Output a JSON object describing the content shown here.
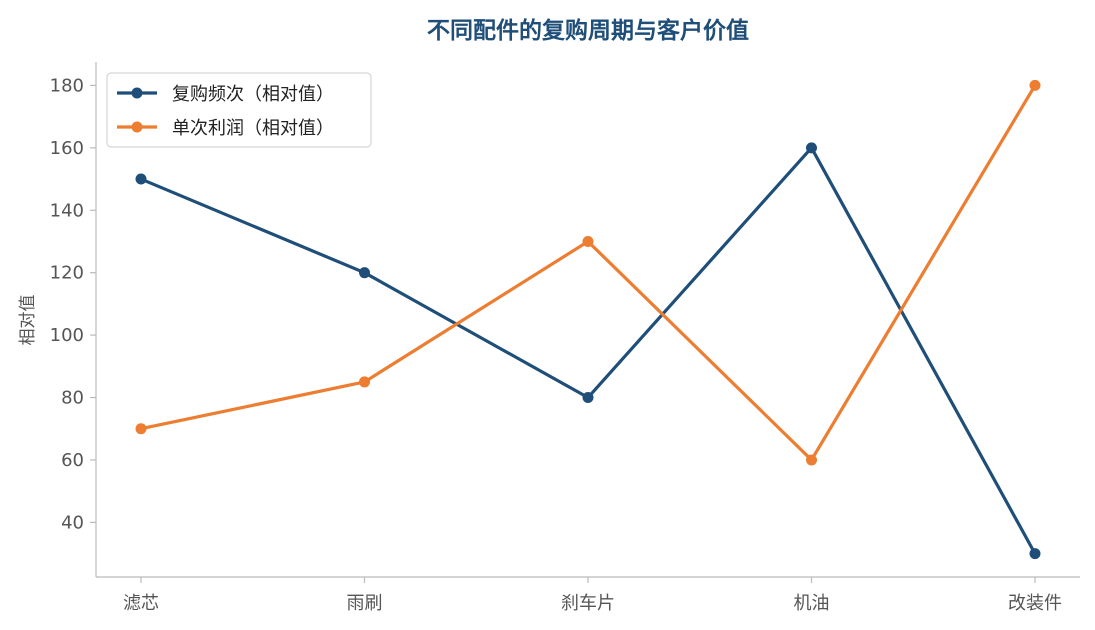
{
  "chart_data": {
    "type": "line",
    "title": "不同配件的复购周期与客户价值",
    "xlabel": "",
    "ylabel": "相对值",
    "categories": [
      "滤芯",
      "雨刷",
      "刹车片",
      "机油",
      "改装件"
    ],
    "series": [
      {
        "name": "复购频次（相对值）",
        "values": [
          150,
          120,
          80,
          160,
          30
        ],
        "color": "#1f4e79"
      },
      {
        "name": "单次利润（相对值）",
        "values": [
          70,
          85,
          130,
          60,
          180
        ],
        "color": "#ed7d31"
      }
    ],
    "ylim": [
      22.5,
      187.5
    ],
    "yticks": [
      40,
      60,
      80,
      100,
      120,
      140,
      160,
      180
    ],
    "grid": false,
    "legend": "top-left",
    "axis_color": "#bbbbbb",
    "title_color": "#1f4e79"
  }
}
